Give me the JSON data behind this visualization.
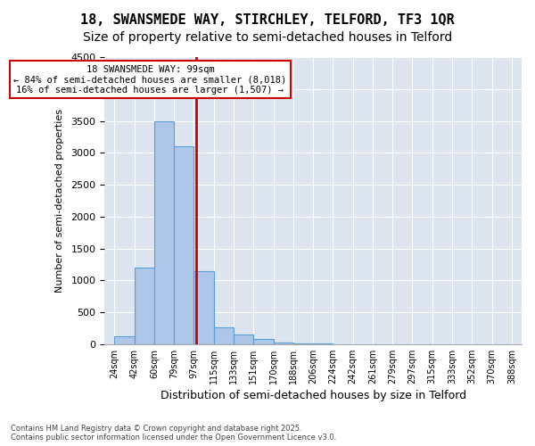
{
  "title1": "18, SWANSMEDE WAY, STIRCHLEY, TELFORD, TF3 1QR",
  "title2": "Size of property relative to semi-detached houses in Telford",
  "xlabel": "Distribution of semi-detached houses by size in Telford",
  "ylabel": "Number of semi-detached properties",
  "footer1": "Contains HM Land Registry data © Crown copyright and database right 2025.",
  "footer2": "Contains public sector information licensed under the Open Government Licence v3.0.",
  "annotation_line1": "18 SWANSMEDE WAY: 99sqm",
  "annotation_line2": "← 84% of semi-detached houses are smaller (8,018)",
  "annotation_line3": "16% of semi-detached houses are larger (1,507) →",
  "bin_labels": [
    "24sqm",
    "42sqm",
    "60sqm",
    "79sqm",
    "97sqm",
    "115sqm",
    "133sqm",
    "151sqm",
    "170sqm",
    "188sqm",
    "206sqm",
    "224sqm",
    "242sqm",
    "261sqm",
    "279sqm",
    "297sqm",
    "315sqm",
    "333sqm",
    "352sqm",
    "370sqm",
    "388sqm"
  ],
  "bar_values": [
    120,
    1200,
    3500,
    3100,
    1150,
    270,
    150,
    80,
    30,
    10,
    5,
    2,
    1,
    0,
    0,
    0,
    0,
    0,
    0,
    0
  ],
  "bar_color": "#aec6e8",
  "bar_edge_color": "#5a9fd4",
  "red_line_color": "#cc0000",
  "annotation_box_color": "#cc0000",
  "background_color": "#dde6f0",
  "ylim": [
    0,
    4500
  ],
  "yticks": [
    0,
    500,
    1000,
    1500,
    2000,
    2500,
    3000,
    3500,
    4000,
    4500
  ],
  "title_fontsize": 11,
  "subtitle_fontsize": 10
}
